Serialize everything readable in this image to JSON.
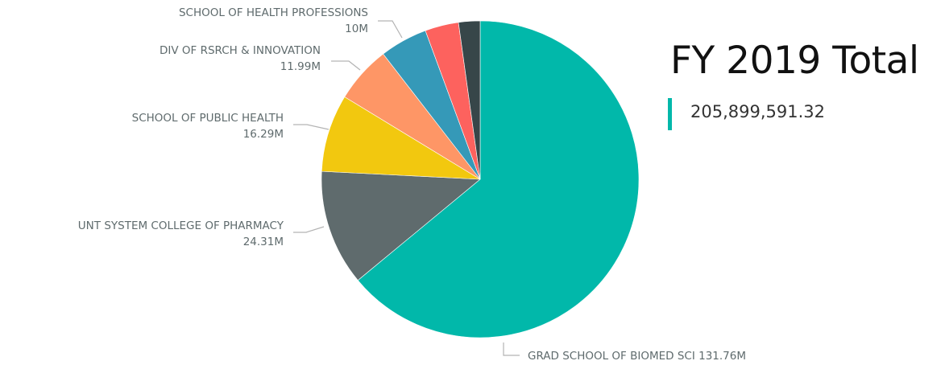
{
  "chart_data": {
    "type": "pie",
    "total_label": "FY 2019 Total",
    "total_value": "205,899,591.32",
    "slices": [
      {
        "name": "GRAD SCHOOL OF BIOMED SCI",
        "value": 131.76,
        "label": "131.76M",
        "color": "#01b8aa"
      },
      {
        "name": "UNT SYSTEM COLLEGE OF PHARMACY",
        "value": 24.31,
        "label": "24.31M",
        "color": "#5f6b6d"
      },
      {
        "name": "SCHOOL OF PUBLIC HEALTH",
        "value": 16.29,
        "label": "16.29M",
        "color": "#f2c80f"
      },
      {
        "name": "DIV OF RSRCH & INNOVATION",
        "value": 11.99,
        "label": "11.99M",
        "color": "#fe9666"
      },
      {
        "name": "SCHOOL OF HEALTH PROFESSIONS",
        "value": 10.0,
        "label": "10M",
        "color": "#3599b8"
      },
      {
        "name": "",
        "value": 7.05,
        "label": "",
        "color": "#fd625e"
      },
      {
        "name": "",
        "value": 4.5,
        "label": "",
        "color": "#374649"
      }
    ]
  }
}
